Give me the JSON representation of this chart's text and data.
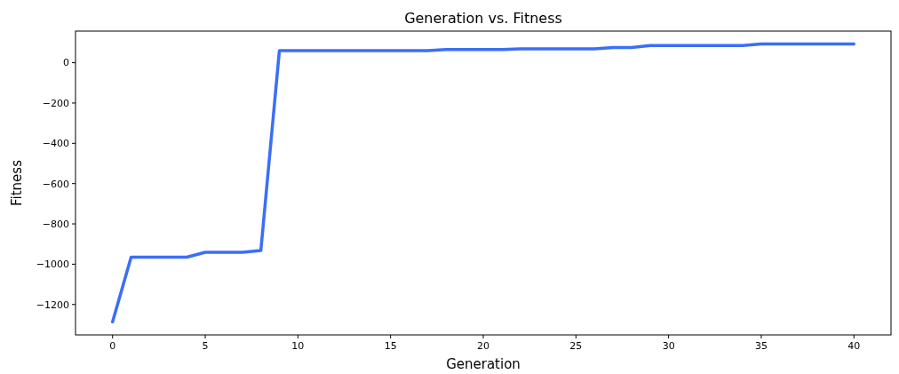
{
  "chart_data": {
    "type": "line",
    "title": "Generation vs. Fitness",
    "xlabel": "Generation",
    "ylabel": "Fitness",
    "x": [
      0,
      1,
      2,
      3,
      4,
      5,
      6,
      7,
      8,
      9,
      10,
      11,
      12,
      13,
      14,
      15,
      16,
      17,
      18,
      19,
      20,
      21,
      22,
      23,
      24,
      25,
      26,
      27,
      28,
      29,
      30,
      31,
      32,
      33,
      34,
      35,
      36,
      37,
      38,
      39,
      40
    ],
    "series": [
      {
        "color": "#3b6ef8",
        "values": [
          -1286,
          -965,
          -965,
          -965,
          -965,
          -941,
          -941,
          -941,
          -932,
          60,
          60,
          60,
          60,
          60,
          60,
          60,
          60,
          60,
          66,
          66,
          66,
          66,
          69,
          69,
          69,
          69,
          69,
          75,
          75,
          85,
          85,
          85,
          85,
          85,
          85,
          93,
          93,
          93,
          93,
          93,
          93
        ]
      }
    ],
    "xlim": [
      -2,
      42
    ],
    "ylim": [
      -1351,
      157
    ],
    "xticks": [
      0,
      5,
      10,
      15,
      20,
      25,
      30,
      35,
      40
    ],
    "yticks": [
      {
        "value": -1200,
        "label": "−1200"
      },
      {
        "value": -1000,
        "label": "−1000"
      },
      {
        "value": -800,
        "label": "−800"
      },
      {
        "value": -600,
        "label": "−600"
      },
      {
        "value": -400,
        "label": "−400"
      },
      {
        "value": -200,
        "label": "−200"
      },
      0
    ],
    "grid": false,
    "marker": "none",
    "line_style": "solid"
  }
}
